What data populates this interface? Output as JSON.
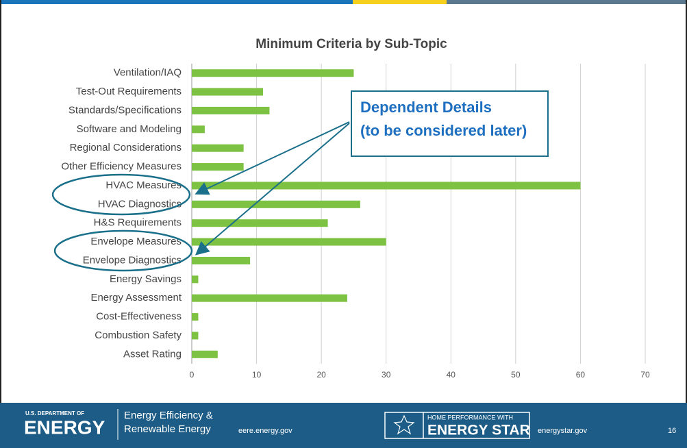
{
  "chart_data": {
    "type": "bar",
    "orientation": "horizontal",
    "title": "Minimum Criteria by Sub-Topic",
    "categories": [
      "Ventilation/IAQ",
      "Test-Out Requirements",
      "Standards/Specifications",
      "Software and Modeling",
      "Regional Considerations",
      "Other Efficiency Measures",
      "HVAC Measures",
      "HVAC Diagnostics",
      "H&S Requirements",
      "Envelope Measures",
      "Envelope Diagnostics",
      "Energy Savings",
      "Energy Assessment",
      "Cost-Effectiveness",
      "Combustion Safety",
      "Asset Rating"
    ],
    "values": [
      25,
      11,
      12,
      2,
      8,
      8,
      60,
      26,
      21,
      30,
      9,
      1,
      24,
      1,
      1,
      4
    ],
    "color": "#7dc242",
    "xlim": [
      0,
      70
    ],
    "xticks": [
      0,
      10,
      20,
      30,
      40,
      50,
      60,
      70
    ],
    "grid": true,
    "annotation": [
      "Dependent Details",
      "(to be considered later)"
    ]
  },
  "footer": {
    "doe_small": "U.S. DEPARTMENT OF",
    "doe": "ENERGY",
    "office": [
      "Energy Efficiency &",
      "Renewable Energy"
    ],
    "eere_url": "eere.energy.gov",
    "star_small": "HOME PERFORMANCE WITH",
    "star": "ENERGY STAR",
    "star_url": "energystar.gov",
    "page": "16"
  }
}
